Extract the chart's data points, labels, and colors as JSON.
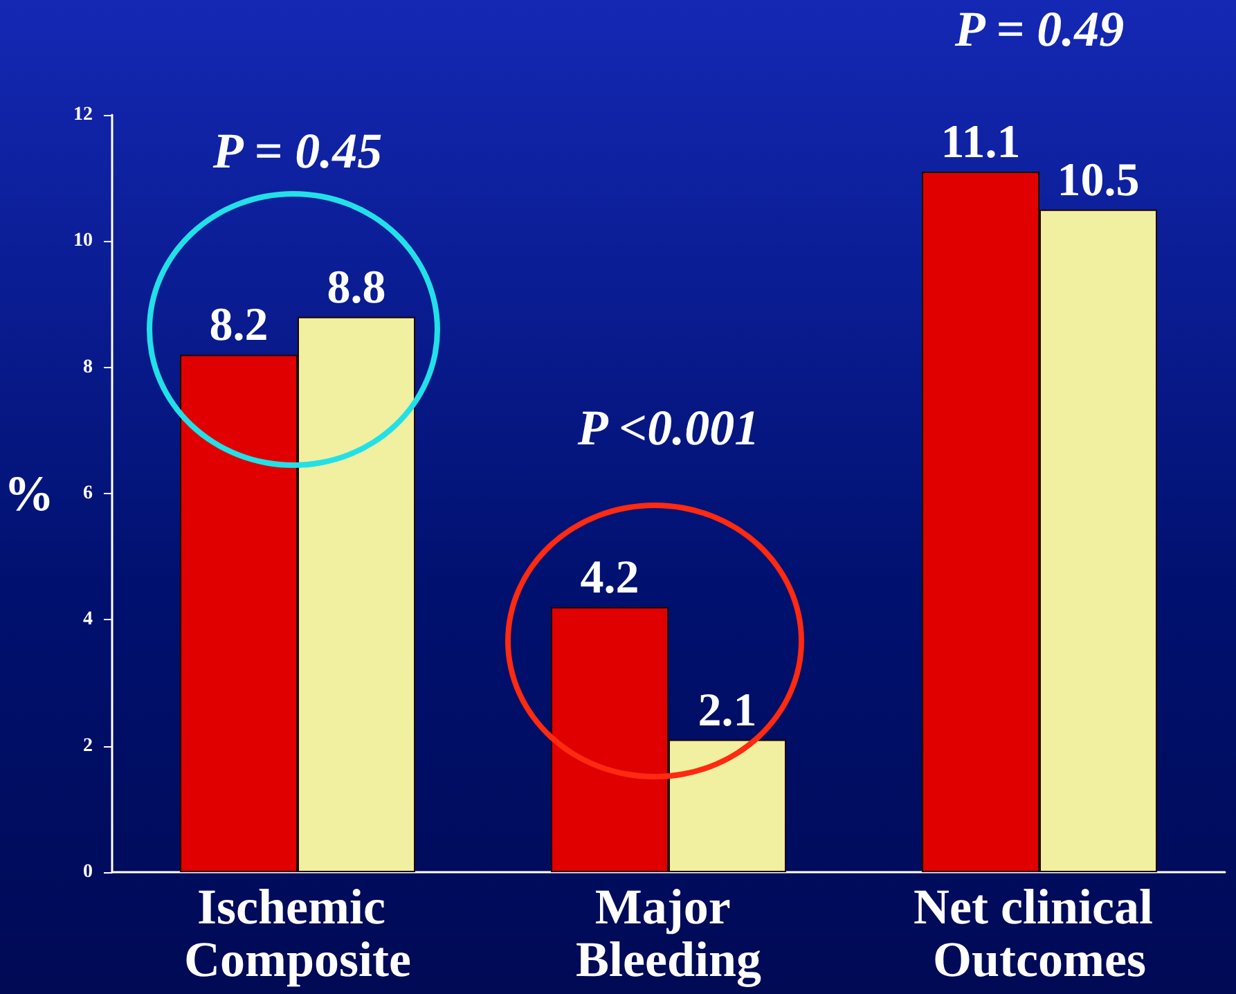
{
  "chart_data": {
    "type": "bar",
    "categories": [
      "Ischemic Composite",
      "Major Bleeding",
      "Net clinical Outcomes"
    ],
    "series": [
      {
        "color": "#e00000",
        "values": [
          8.2,
          4.2,
          11.1
        ]
      },
      {
        "color": "#f0f0a0",
        "values": [
          8.8,
          2.1,
          10.5
        ]
      }
    ],
    "ylabel": "%",
    "ylim": [
      0,
      12
    ],
    "yticks": [
      0,
      2,
      4,
      6,
      8,
      10,
      12
    ],
    "annotations": [
      "P = 0.45",
      "P <0.001",
      "P = 0.49"
    ],
    "data_labels": true,
    "grid": false
  }
}
